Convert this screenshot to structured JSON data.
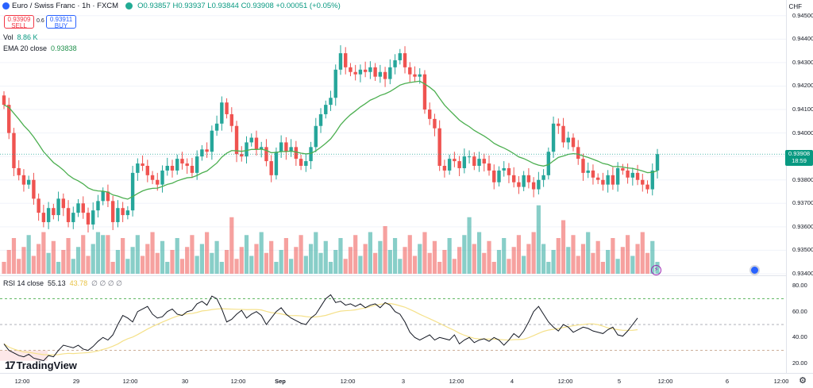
{
  "header": {
    "symbol": "Euro / Swiss Franc · 1h · FXCM",
    "ohlc": "O0.93857 H0.93937 L0.93844 C0.93908 +0.00051 (+0.05%)",
    "sell_price": "0.93909",
    "sell_label": "SELL",
    "spread": "0.6",
    "buy_price": "0.93911",
    "buy_label": "BUY",
    "vol_label": "Vol",
    "vol_value": "8.86 K",
    "ema_label": "EMA 20 close",
    "ema_value": "0.93838",
    "rsi_label": "RSI 14 close",
    "rsi_value": "55.13",
    "rsi_ma_value": "43.78",
    "rsi_extra": "∅ ∅ ∅ ∅",
    "currency": "CHF",
    "logo": "TradingView"
  },
  "price_badge": {
    "price": "0.93908",
    "countdown": "18:59"
  },
  "colors": {
    "up": "#26a69a",
    "down": "#ef5350",
    "ema": "#4caf50",
    "rsi": "#131722",
    "rsi_ma": "#f5e18a"
  },
  "chart_data": [
    {
      "type": "candlestick",
      "title": "Euro / Swiss Franc · 1h · FXCM",
      "ylim": [
        0.934,
        0.9455
      ],
      "y_ticks": [
        "0.94500",
        "0.94400",
        "0.94300",
        "0.94200",
        "0.94100",
        "0.94000",
        "0.93900",
        "0.93800",
        "0.93700",
        "0.93600",
        "0.93500",
        "0.93400"
      ],
      "x_ticks": [
        "12:00",
        "29",
        "12:00",
        "30",
        "12:00",
        "Sep",
        "12:00",
        "3",
        "12:00",
        "4",
        "12:00",
        "5",
        "12:00",
        "6",
        "12:00"
      ],
      "grid": true,
      "series": [
        {
          "name": "EMA 20 close",
          "values": []
        }
      ]
    },
    {
      "type": "bar",
      "title": "Vol",
      "values": []
    },
    {
      "type": "line",
      "title": "RSI 14 close",
      "ylim": [
        15,
        85
      ],
      "y_ticks": [
        "80.00",
        "60.00",
        "40.00",
        "20.00"
      ],
      "levels": [
        70,
        50,
        30
      ],
      "series": [
        {
          "name": "RSI 14 close",
          "values": []
        }
      ]
    }
  ]
}
